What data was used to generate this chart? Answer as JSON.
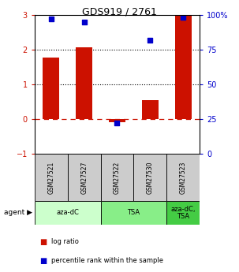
{
  "title": "GDS919 / 2761",
  "samples": [
    "GSM27521",
    "GSM27527",
    "GSM27522",
    "GSM27530",
    "GSM27523"
  ],
  "log_ratio": [
    1.78,
    2.07,
    -0.1,
    0.55,
    3.0
  ],
  "percentile_rank": [
    97,
    95,
    22,
    82,
    98
  ],
  "bar_color": "#cc1100",
  "dot_color": "#0000cc",
  "ylim_left": [
    -1,
    3
  ],
  "ylim_right": [
    0,
    100
  ],
  "yticks_left": [
    -1,
    0,
    1,
    2,
    3
  ],
  "yticks_right": [
    0,
    25,
    50,
    75,
    100
  ],
  "yticklabels_right": [
    "0",
    "25",
    "50",
    "75",
    "100%"
  ],
  "hline0_color": "#cc1100",
  "hline_color": "#000000",
  "agent_groups": [
    {
      "label": "aza-dC",
      "samples": [
        "GSM27521",
        "GSM27527"
      ],
      "color": "#ccffcc"
    },
    {
      "label": "TSA",
      "samples": [
        "GSM27522",
        "GSM27530"
      ],
      "color": "#88ee88"
    },
    {
      "label": "aza-dC,\nTSA",
      "samples": [
        "GSM27523"
      ],
      "color": "#44cc44"
    }
  ],
  "legend_red": "log ratio",
  "legend_blue": "percentile rank within the sample",
  "sample_box_color": "#cccccc",
  "background_color": "#ffffff"
}
